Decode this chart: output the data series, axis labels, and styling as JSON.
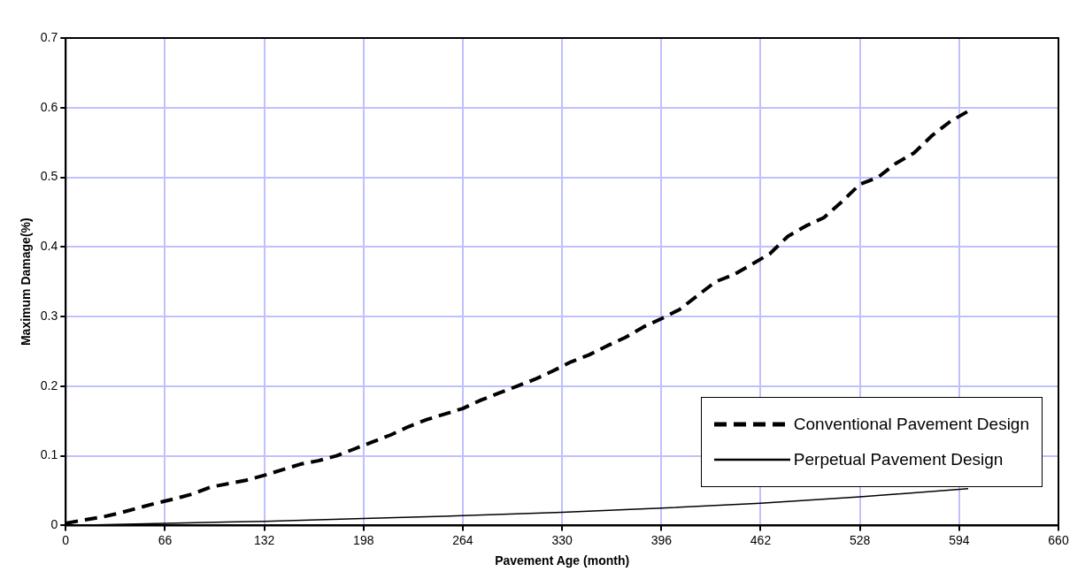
{
  "chart_data": {
    "type": "line",
    "xlabel": "Pavement Age (month)",
    "ylabel": "Maximum Damage(%)",
    "xlim": [
      0,
      660
    ],
    "xticks": [
      0,
      66,
      132,
      198,
      264,
      330,
      396,
      462,
      528,
      594,
      660
    ],
    "ylim": [
      0,
      0.7
    ],
    "yticks": [
      0,
      0.1,
      0.2,
      0.3,
      0.4,
      0.5,
      0.6,
      0.7
    ],
    "grid": true,
    "legend": "bottom right",
    "marker": "none",
    "series": [
      {
        "name": "Conventional Pavement Design",
        "color": "#000000",
        "line_style": "dashed",
        "x": [
          0,
          12,
          24,
          36,
          48,
          60,
          72,
          84,
          96,
          108,
          120,
          132,
          144,
          156,
          168,
          180,
          192,
          204,
          216,
          228,
          240,
          252,
          264,
          276,
          288,
          300,
          312,
          324,
          336,
          348,
          360,
          372,
          384,
          396,
          408,
          420,
          432,
          444,
          456,
          468,
          480,
          492,
          504,
          516,
          528,
          540,
          552,
          564,
          576,
          588,
          600
        ],
        "values": [
          0.003,
          0.008,
          0.012,
          0.018,
          0.025,
          0.032,
          0.038,
          0.045,
          0.055,
          0.06,
          0.065,
          0.072,
          0.08,
          0.088,
          0.093,
          0.1,
          0.11,
          0.12,
          0.13,
          0.142,
          0.152,
          0.16,
          0.168,
          0.18,
          0.19,
          0.2,
          0.21,
          0.222,
          0.235,
          0.245,
          0.258,
          0.27,
          0.285,
          0.297,
          0.31,
          0.33,
          0.35,
          0.36,
          0.375,
          0.39,
          0.415,
          0.43,
          0.442,
          0.465,
          0.49,
          0.5,
          0.52,
          0.535,
          0.56,
          0.58,
          0.595
        ]
      },
      {
        "name": "Perpetual Pavement Design",
        "color": "#000000",
        "line_style": "solid",
        "x": [
          0,
          66,
          132,
          198,
          264,
          330,
          396,
          462,
          528,
          600
        ],
        "values": [
          0,
          0.003,
          0.006,
          0.01,
          0.014,
          0.019,
          0.025,
          0.032,
          0.041,
          0.053
        ]
      }
    ]
  }
}
